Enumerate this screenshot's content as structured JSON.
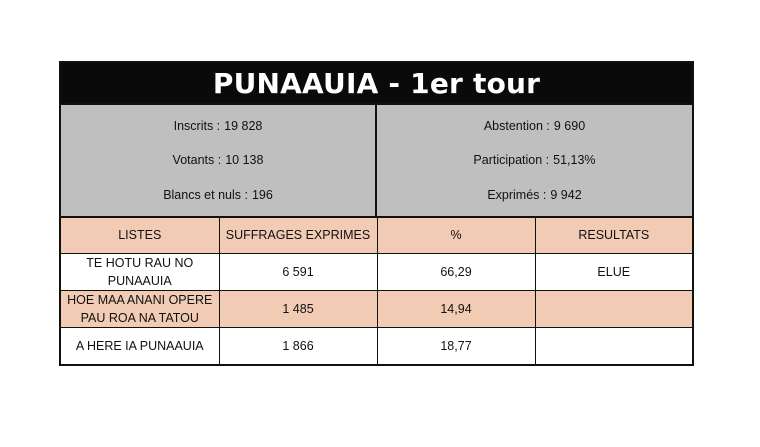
{
  "title": "PUNAAUIA - 1er tour",
  "summary": {
    "left": [
      {
        "label": "Inscrits :",
        "value": "19 828"
      },
      {
        "label": "Votants :",
        "value": "10 138"
      },
      {
        "label": "Blancs et nuls :",
        "value": "196"
      }
    ],
    "right": [
      {
        "label": "Abstention :",
        "value": "9 690"
      },
      {
        "label": "Participation :",
        "value": "51,13%"
      },
      {
        "label": "Exprimés :",
        "value": "9 942"
      }
    ]
  },
  "table": {
    "headers": [
      "LISTES",
      "SUFFRAGES EXPRIMES",
      "%",
      "RESULTATS"
    ],
    "rows": [
      {
        "liste": "TE HOTU RAU NO PUNAAUIA",
        "suffrages": "6 591",
        "pct": "66,29",
        "resultat": "ELUE"
      },
      {
        "liste": "HOE MAA ANANI OPERE PAU ROA NA TATOU",
        "suffrages": "1 485",
        "pct": "14,94",
        "resultat": ""
      },
      {
        "liste": "A HERE IA PUNAAUIA",
        "suffrages": "1 866",
        "pct": "18,77",
        "resultat": ""
      }
    ]
  },
  "colors": {
    "title_bg": "#0a0a0a",
    "summary_bg": "#bfbfbf",
    "accent_row": "#f2cbb4"
  }
}
